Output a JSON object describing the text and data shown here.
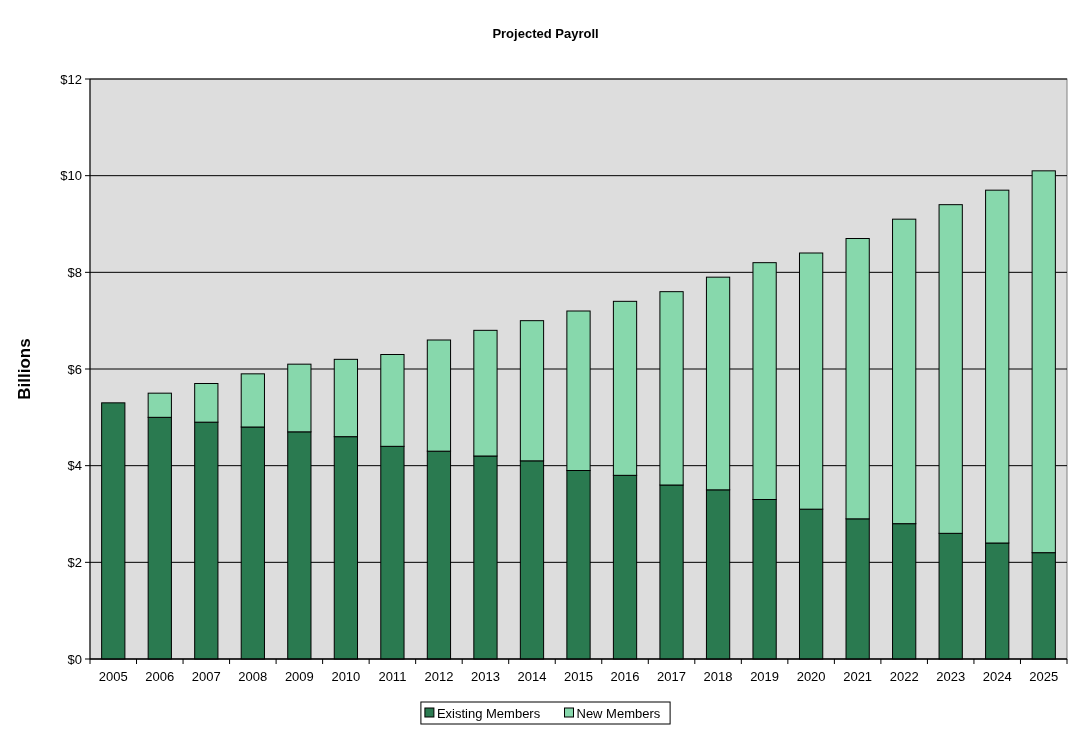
{
  "chart_data": {
    "type": "bar",
    "title": "Projected Payroll",
    "ylabel": "Billions",
    "stacked": true,
    "categories": [
      "2005",
      "2006",
      "2007",
      "2008",
      "2009",
      "2010",
      "2011",
      "2012",
      "2013",
      "2014",
      "2015",
      "2016",
      "2017",
      "2018",
      "2019",
      "2020",
      "2021",
      "2022",
      "2023",
      "2024",
      "2025"
    ],
    "series": [
      {
        "name": "Existing Members",
        "color": "#2a7a50",
        "values": [
          5.3,
          5.0,
          4.9,
          4.8,
          4.7,
          4.6,
          4.4,
          4.3,
          4.2,
          4.1,
          3.9,
          3.8,
          3.6,
          3.5,
          3.3,
          3.1,
          2.9,
          2.8,
          2.6,
          2.4,
          2.2
        ]
      },
      {
        "name": "New Members",
        "color": "#87d8ac",
        "values": [
          0,
          0.5,
          0.8,
          1.1,
          1.4,
          1.6,
          1.9,
          2.3,
          2.6,
          2.9,
          3.3,
          3.6,
          4.0,
          4.4,
          4.9,
          5.3,
          5.8,
          6.3,
          6.8,
          7.3,
          7.9
        ]
      }
    ],
    "ylim": [
      0,
      12
    ],
    "yticks": [
      {
        "value": 0,
        "label": "$0"
      },
      {
        "value": 2,
        "label": "$2"
      },
      {
        "value": 4,
        "label": "$4"
      },
      {
        "value": 6,
        "label": "$6"
      },
      {
        "value": 8,
        "label": "$8"
      },
      {
        "value": 10,
        "label": "$10"
      },
      {
        "value": 12,
        "label": "$12"
      }
    ],
    "grid": "y",
    "legend": "bottom"
  }
}
